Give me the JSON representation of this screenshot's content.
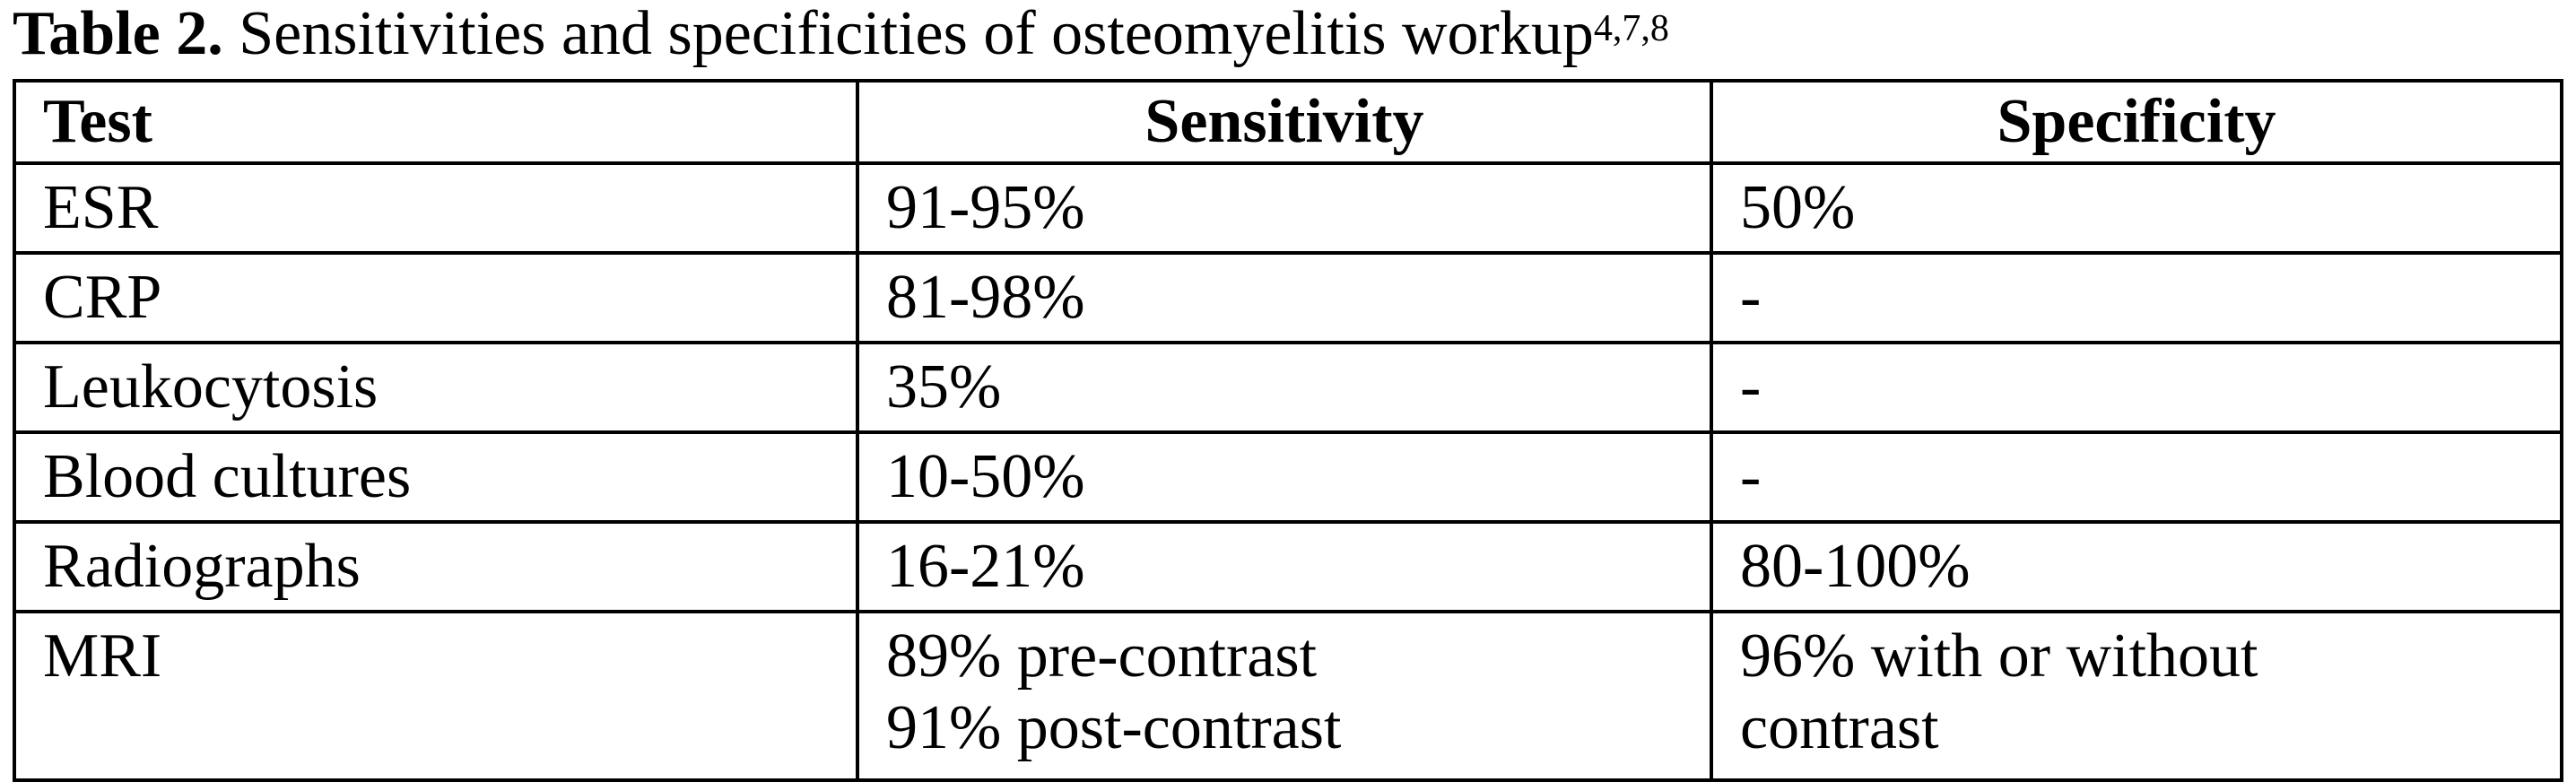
{
  "caption": {
    "label": "Table 2.",
    "text": " Sensitivities and specificities of osteomyelitis workup",
    "superscript": "4,7,8"
  },
  "table": {
    "headers": [
      "Test",
      "Sensitivity",
      "Specificity"
    ],
    "rows": [
      {
        "test": "ESR",
        "sensitivity": [
          "91-95%"
        ],
        "specificity": [
          "50%"
        ]
      },
      {
        "test": "CRP",
        "sensitivity": [
          "81-98%"
        ],
        "specificity": [
          "-"
        ]
      },
      {
        "test": "Leukocytosis",
        "sensitivity": [
          "35%"
        ],
        "specificity": [
          "-"
        ]
      },
      {
        "test": "Blood cultures",
        "sensitivity": [
          "10-50%"
        ],
        "specificity": [
          "-"
        ]
      },
      {
        "test": "Radiographs",
        "sensitivity": [
          "16-21%"
        ],
        "specificity": [
          "80-100%"
        ]
      },
      {
        "test": "MRI",
        "sensitivity": [
          "89% pre-contrast",
          "91% post-contrast"
        ],
        "specificity": [
          "96% with or without",
          "contrast"
        ]
      }
    ]
  }
}
